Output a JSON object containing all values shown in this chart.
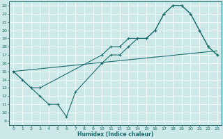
{
  "xlabel": "Humidex (Indice chaleur)",
  "bg_color": "#cce8e8",
  "line_color": "#1a6b6b",
  "grid_color": "#b8d8d8",
  "xlim": [
    -0.5,
    23.5
  ],
  "ylim": [
    8.5,
    23.5
  ],
  "xticks": [
    0,
    1,
    2,
    3,
    4,
    5,
    6,
    7,
    8,
    9,
    10,
    11,
    12,
    13,
    14,
    15,
    16,
    17,
    18,
    19,
    20,
    21,
    22,
    23
  ],
  "yticks": [
    9,
    10,
    11,
    12,
    13,
    14,
    15,
    16,
    17,
    18,
    19,
    20,
    21,
    22,
    23
  ],
  "line1_x": [
    0,
    1,
    2,
    3,
    10,
    11,
    12,
    13,
    14,
    15,
    16,
    17,
    18,
    19,
    20,
    21,
    22,
    23
  ],
  "line1_y": [
    15,
    14,
    13,
    13,
    17,
    18,
    18,
    19,
    19,
    19,
    20,
    22,
    23,
    23,
    22,
    20,
    18,
    17
  ],
  "line2_x": [
    0,
    2,
    3,
    4,
    5,
    6,
    7,
    10,
    11,
    12,
    13,
    14,
    15,
    16,
    17,
    18,
    19,
    20,
    21,
    22,
    23
  ],
  "line2_y": [
    15,
    13,
    12,
    11,
    11,
    9.5,
    12.5,
    16,
    17,
    17,
    18,
    19,
    19,
    20,
    22,
    23,
    23,
    22,
    20,
    18,
    17
  ],
  "line3_x": [
    0,
    23
  ],
  "line3_y": [
    15,
    17.5
  ]
}
